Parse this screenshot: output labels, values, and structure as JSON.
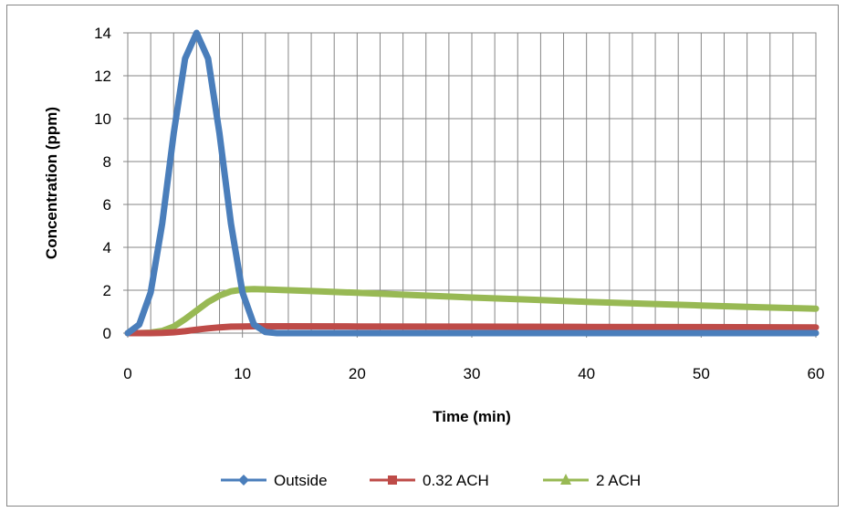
{
  "chart_data": {
    "type": "line",
    "title": "",
    "xlabel": "Time (min)",
    "ylabel": "Concentration (ppm)",
    "xlim": [
      0,
      60
    ],
    "ylim": [
      0,
      14
    ],
    "xticks": [
      0,
      10,
      20,
      30,
      40,
      50,
      60
    ],
    "yticks": [
      0,
      2,
      4,
      6,
      8,
      10,
      12,
      14
    ],
    "x_minor_step": 2,
    "grid": true,
    "legend_position": "bottom",
    "series": [
      {
        "name": "Outside",
        "color": "#4a7ebb",
        "marker": "diamond",
        "x": [
          0,
          1,
          2,
          3,
          4,
          5,
          6,
          7,
          8,
          9,
          10,
          11,
          12,
          13,
          14,
          20,
          30,
          40,
          50,
          60
        ],
        "values": [
          0.0,
          0.4,
          1.9,
          5.1,
          9.3,
          12.8,
          14.0,
          12.8,
          9.3,
          5.1,
          1.9,
          0.4,
          0.05,
          0.0,
          0.0,
          0.0,
          0.0,
          0.0,
          0.0,
          0.0
        ]
      },
      {
        "name": "0.32 ACH",
        "color": "#be4b48",
        "marker": "square",
        "x": [
          0,
          2,
          3,
          4,
          5,
          6,
          7,
          8,
          9,
          10,
          11,
          12,
          14,
          20,
          30,
          40,
          50,
          60
        ],
        "values": [
          0.0,
          0.0,
          0.01,
          0.04,
          0.09,
          0.16,
          0.22,
          0.27,
          0.3,
          0.31,
          0.32,
          0.32,
          0.32,
          0.31,
          0.3,
          0.29,
          0.28,
          0.27
        ]
      },
      {
        "name": "2 ACH",
        "color": "#98b954",
        "marker": "triangle",
        "x": [
          0,
          1,
          2,
          3,
          4,
          5,
          6,
          7,
          8,
          9,
          10,
          11,
          12,
          14,
          16,
          20,
          25,
          30,
          35,
          40,
          45,
          50,
          55,
          60
        ],
        "values": [
          0.0,
          0.0,
          0.02,
          0.1,
          0.3,
          0.65,
          1.05,
          1.45,
          1.75,
          1.95,
          2.03,
          2.05,
          2.04,
          2.0,
          1.96,
          1.88,
          1.77,
          1.66,
          1.56,
          1.46,
          1.37,
          1.29,
          1.21,
          1.14
        ]
      }
    ]
  }
}
